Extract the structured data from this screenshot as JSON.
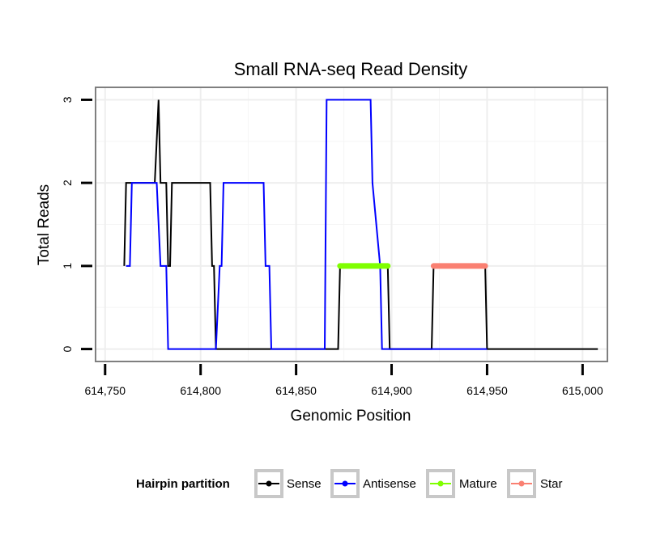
{
  "chart_data": {
    "type": "line",
    "title": "Small RNA-seq Read Density",
    "xlabel": "Genomic Position",
    "ylabel": "Total Reads",
    "xlim": [
      614745,
      615013
    ],
    "ylim": [
      -0.15,
      3.15
    ],
    "x_ticks": [
      614750,
      614800,
      614850,
      614900,
      614950,
      615000
    ],
    "x_tick_labels": [
      "614,750",
      "614,800",
      "614,850",
      "614,900",
      "614,950",
      "615,000"
    ],
    "y_ticks": [
      0,
      1,
      2,
      3
    ],
    "y_tick_labels": [
      "0",
      "1",
      "2",
      "3"
    ],
    "grid": true,
    "legend": {
      "title": "Hairpin partition",
      "position": "bottom",
      "entries": [
        {
          "label": "Sense",
          "color": "#000000"
        },
        {
          "label": "Antisense",
          "color": "#0000ff"
        },
        {
          "label": "Mature",
          "color": "#7fff00"
        },
        {
          "label": "Star",
          "color": "#fa8072"
        }
      ]
    },
    "series": [
      {
        "name": "Sense",
        "color": "#000000",
        "width": 2,
        "x": [
          614760,
          614761,
          614776,
          614778,
          614779,
          614782,
          614783,
          614784,
          614785,
          614805,
          614806,
          614807,
          614808,
          614872,
          614873,
          614898,
          614899,
          614921,
          614922,
          614949,
          614950,
          615008
        ],
        "y": [
          1,
          2,
          2,
          3,
          2,
          2,
          1,
          1,
          2,
          2,
          1,
          1,
          0,
          0,
          1,
          1,
          0,
          0,
          1,
          1,
          0,
          0
        ]
      },
      {
        "name": "Antisense",
        "color": "#0000ff",
        "width": 2,
        "x": [
          614761,
          614763,
          614764,
          614777,
          614779,
          614782,
          614783,
          614808,
          614810,
          614811,
          614812,
          614833,
          614834,
          614836,
          614837,
          614865,
          614866,
          614889,
          614890,
          614894,
          614895,
          614949,
          614950
        ],
        "y": [
          1,
          1,
          2,
          2,
          1,
          1,
          0,
          0,
          1,
          1,
          2,
          2,
          1,
          1,
          0,
          0,
          3,
          3,
          2,
          1,
          0,
          0,
          0
        ]
      },
      {
        "name": "Mature",
        "color": "#7fff00",
        "width": 7,
        "x": [
          614873,
          614898
        ],
        "y": [
          1,
          1
        ]
      },
      {
        "name": "Star",
        "color": "#fa8072",
        "width": 7,
        "x": [
          614922,
          614949
        ],
        "y": [
          1,
          1
        ]
      }
    ]
  }
}
